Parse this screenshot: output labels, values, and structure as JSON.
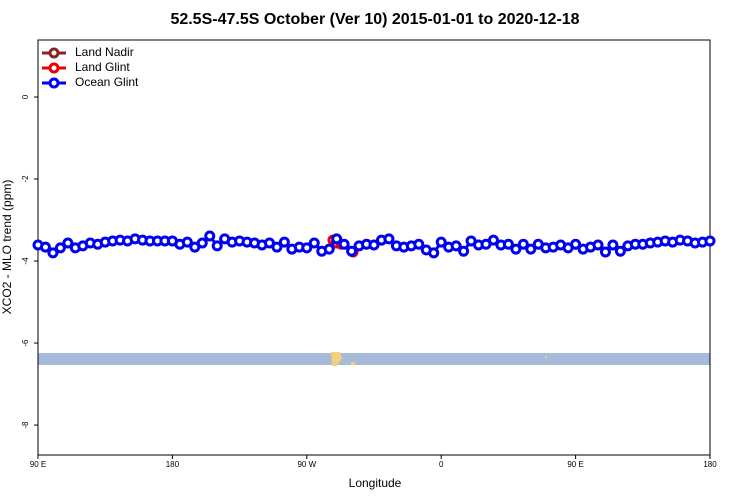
{
  "chart_data": {
    "type": "line",
    "title": "52.5S-47.5S October (Ver 10)   2015-01-01 to 2020-12-18",
    "xlabel": "Longitude",
    "ylabel": "XCO2 - MLO trend (ppm)",
    "xlim": [
      90,
      540
    ],
    "ylim": [
      -8.73,
      1.39
    ],
    "xticks": [
      {
        "value": 90,
        "label": "90 E"
      },
      180,
      {
        "value": 270,
        "label": "90 W"
      },
      {
        "value": 360,
        "label": "0"
      },
      {
        "value": 450,
        "label": "90 E"
      },
      {
        "value": 540,
        "label": "180"
      }
    ],
    "yticks": [
      0,
      -2,
      -4,
      -6,
      -8
    ],
    "legend": "top-left",
    "series": [
      {
        "name": "Land Nadir",
        "color": "#8b2323",
        "x": [],
        "values": []
      },
      {
        "name": "Land Glint",
        "color": "#ee0000",
        "x": [
          287.5,
          289.6,
          293,
          301
        ],
        "values": [
          -3.49,
          -3.56,
          -3.59,
          -3.78
        ]
      },
      {
        "name": "Ocean Glint",
        "color": "#0000ee",
        "x": [
          90,
          95,
          100,
          105,
          110,
          115,
          120,
          125,
          130,
          135,
          140,
          145,
          150,
          155,
          160,
          165,
          170,
          175,
          180,
          185,
          190,
          195,
          200,
          205,
          210,
          215,
          220,
          225,
          230,
          235,
          240,
          245,
          250,
          255,
          260,
          265,
          270,
          275,
          280,
          285,
          290,
          295,
          300,
          305,
          310,
          315,
          320,
          325,
          330,
          335,
          340,
          345,
          350,
          355,
          360,
          365,
          370,
          375,
          380,
          385,
          390,
          395,
          400,
          405,
          410,
          415,
          420,
          425,
          430,
          435,
          440,
          445,
          450,
          455,
          460,
          465,
          470,
          475,
          480,
          485,
          490,
          495,
          500,
          505,
          510,
          515,
          520,
          525,
          530,
          535,
          540
        ],
        "values": [
          -3.61,
          -3.66,
          -3.8,
          -3.68,
          -3.56,
          -3.68,
          -3.63,
          -3.56,
          -3.59,
          -3.54,
          -3.51,
          -3.49,
          -3.51,
          -3.46,
          -3.49,
          -3.51,
          -3.51,
          -3.51,
          -3.51,
          -3.59,
          -3.54,
          -3.66,
          -3.56,
          -3.39,
          -3.63,
          -3.46,
          -3.54,
          -3.51,
          -3.54,
          -3.56,
          -3.61,
          -3.56,
          -3.66,
          -3.54,
          -3.71,
          -3.66,
          -3.68,
          -3.56,
          -3.76,
          -3.71,
          -3.46,
          -3.59,
          -3.76,
          -3.63,
          -3.59,
          -3.61,
          -3.49,
          -3.46,
          -3.63,
          -3.66,
          -3.63,
          -3.59,
          -3.73,
          -3.8,
          -3.54,
          -3.66,
          -3.63,
          -3.76,
          -3.51,
          -3.61,
          -3.59,
          -3.49,
          -3.61,
          -3.59,
          -3.71,
          -3.59,
          -3.71,
          -3.59,
          -3.68,
          -3.66,
          -3.61,
          -3.68,
          -3.59,
          -3.71,
          -3.66,
          -3.61,
          -3.78,
          -3.61,
          -3.76,
          -3.63,
          -3.59,
          -3.59,
          -3.56,
          -3.54,
          -3.51,
          -3.54,
          -3.49,
          -3.51,
          -3.56,
          -3.54,
          -3.51
        ]
      }
    ]
  }
}
